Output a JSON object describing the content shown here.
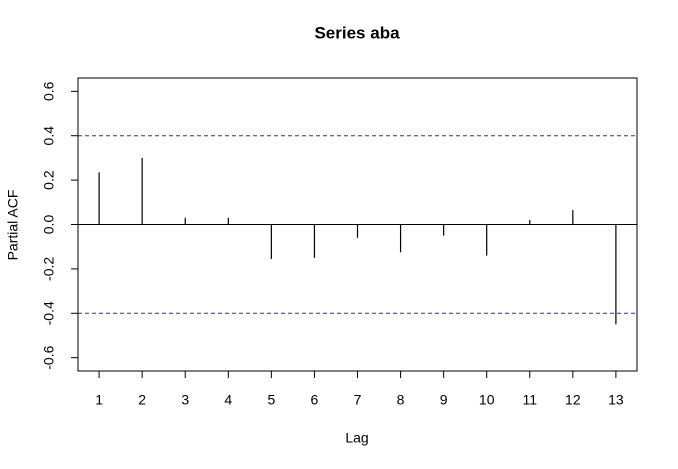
{
  "chart_data": {
    "type": "bar",
    "title": "Series  aba",
    "x_label": "Lag",
    "y_label": "Partial ACF",
    "x": [
      1,
      2,
      3,
      4,
      5,
      6,
      7,
      8,
      9,
      10,
      11,
      12,
      13
    ],
    "values": [
      0.235,
      0.3,
      0.03,
      0.03,
      -0.155,
      -0.15,
      -0.06,
      -0.125,
      -0.05,
      -0.14,
      0.02,
      0.065,
      -0.45
    ],
    "color": "#000000",
    "confidence_lines": [
      0.4,
      -0.4
    ],
    "confidence_color": "#1f3a93",
    "xlim": [
      0.51,
      13.49
    ],
    "xticks": [
      1,
      2,
      3,
      4,
      5,
      6,
      7,
      8,
      9,
      10,
      11,
      12,
      13
    ],
    "ylim": [
      -0.66,
      0.66
    ],
    "yticks": [
      -0.6,
      -0.4,
      -0.2,
      {
        "value": 0,
        "label": "0.0"
      },
      0.2,
      0.4,
      0.6
    ]
  }
}
